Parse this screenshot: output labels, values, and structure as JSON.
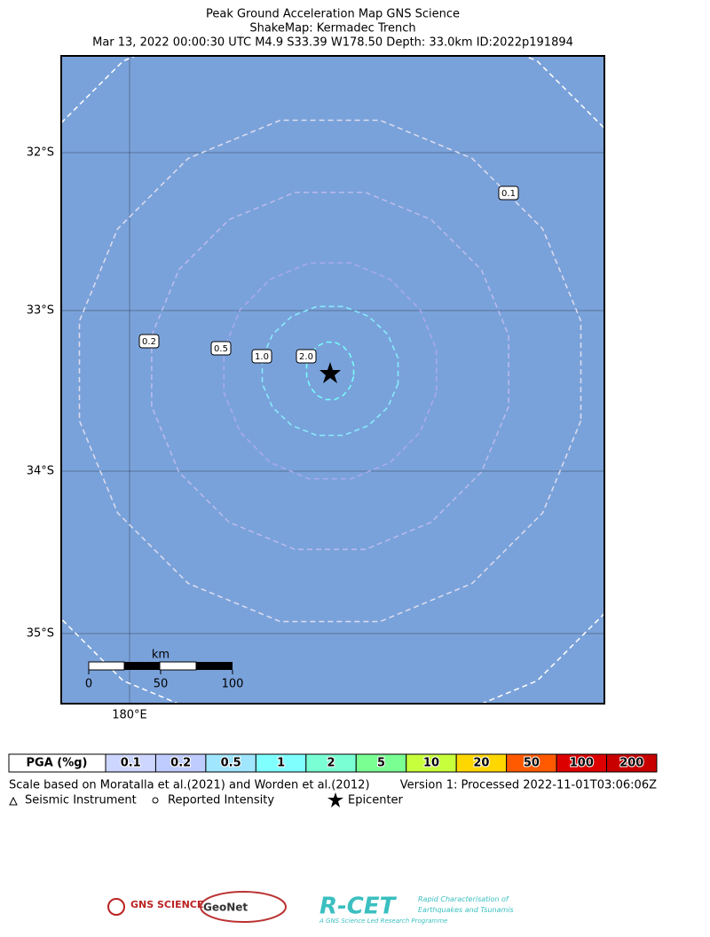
{
  "header": {
    "title": "Peak Ground Acceleration Map GNS Science",
    "subtitle": "ShakeMap: Kermadec Trench",
    "event": "Mar 13, 2022 00:00:30 UTC M4.9 S33.39 W178.50 Depth: 33.0km ID:2022p191894"
  },
  "map": {
    "lat_labels": [
      "32°S",
      "33°S",
      "34°S",
      "35°S"
    ],
    "lon_labels": [
      "180°E"
    ],
    "contour_labels": [
      "0.1",
      "0.2",
      "0.5",
      "1.0",
      "2.0"
    ],
    "scale": {
      "unit": "km",
      "ticks": [
        "0",
        "50",
        "100"
      ]
    }
  },
  "legend": {
    "header": "PGA (%g)",
    "items": [
      {
        "label": "0.1",
        "color": "#cdd6ff"
      },
      {
        "label": "0.2",
        "color": "#bfccff"
      },
      {
        "label": "0.5",
        "color": "#a0e6ff"
      },
      {
        "label": "1",
        "color": "#80ffff"
      },
      {
        "label": "2",
        "color": "#7affd4"
      },
      {
        "label": "5",
        "color": "#7aff93"
      },
      {
        "label": "10",
        "color": "#c8ff3c"
      },
      {
        "label": "20",
        "color": "#ffd700"
      },
      {
        "label": "50",
        "color": "#ff5a00"
      },
      {
        "label": "100",
        "color": "#dd0000"
      },
      {
        "label": "200",
        "color": "#c80000"
      }
    ]
  },
  "footer": {
    "credit": "Scale based on Moratalla et al.(2021) and Worden et al.(2012)",
    "version": "Version 1: Processed 2022-11-01T03:06:06Z",
    "symbols": [
      "Seismic Instrument",
      "Reported Intensity",
      "Epicenter"
    ]
  },
  "logos": [
    "GNS SCIENCE",
    "GeoNet",
    "R-CET",
    "Rapid Characterisation of",
    "Earthquakes and Tsunamis",
    "A GNS Science Led Research Programme"
  ]
}
